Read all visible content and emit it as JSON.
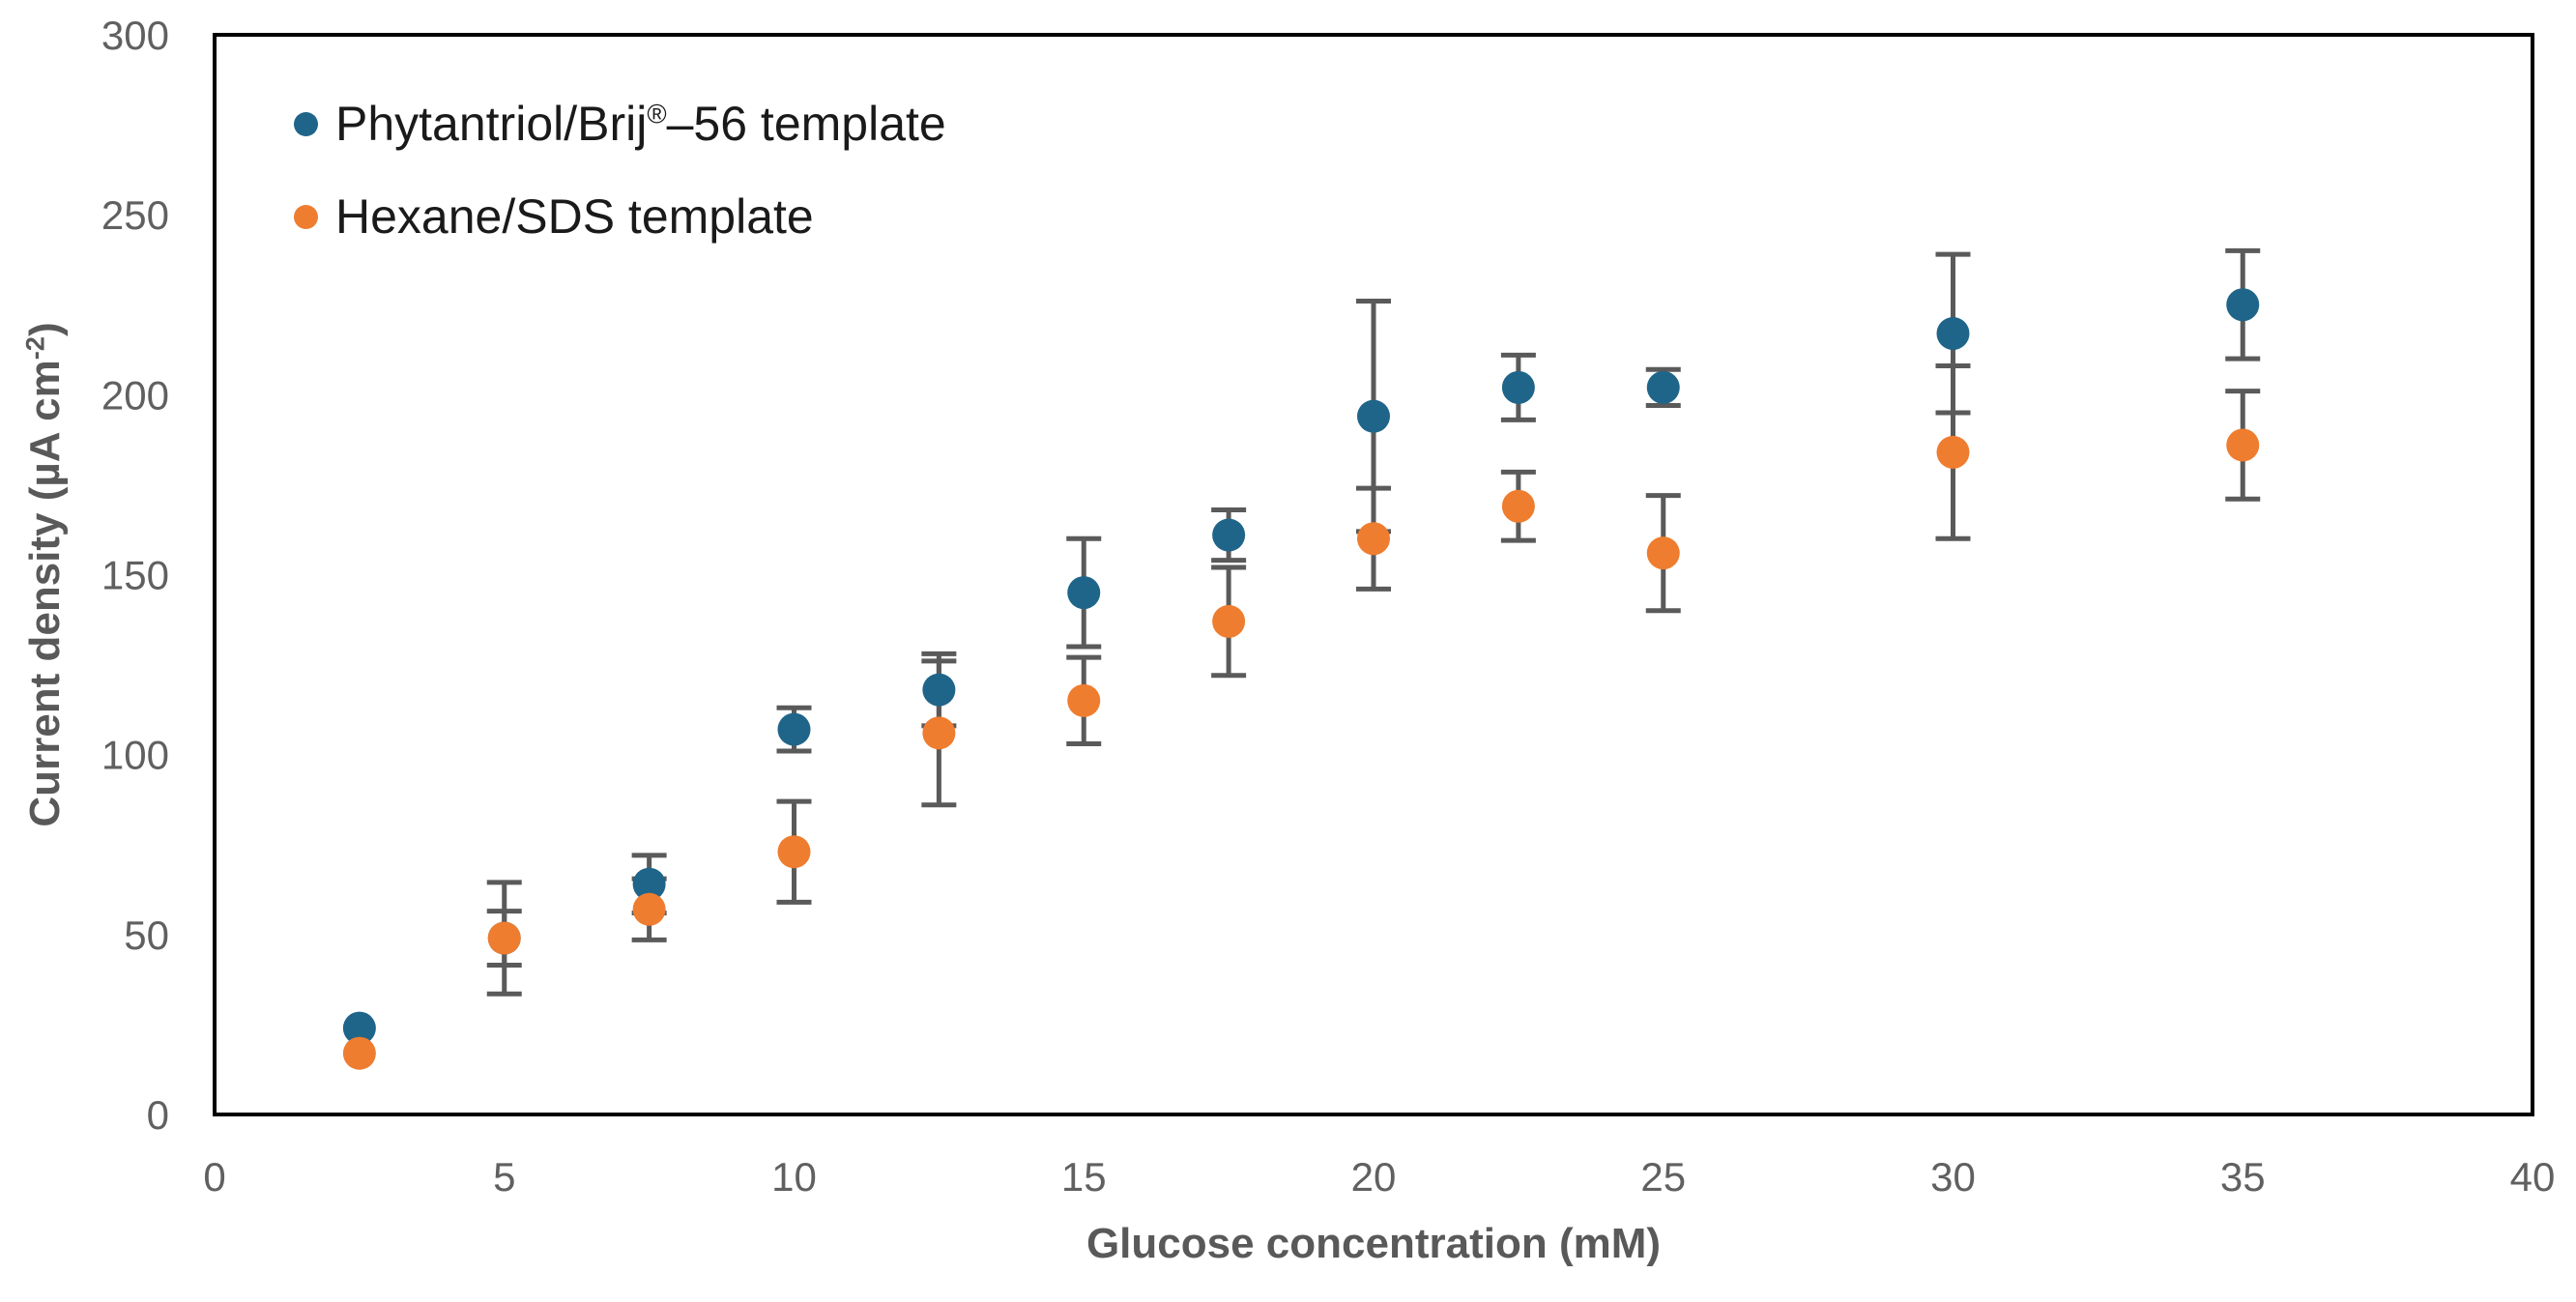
{
  "chart_data": {
    "type": "scatter",
    "title": "",
    "xlabel": "Glucose concentration (mM)",
    "ylabel": "Current density (µA cm⁻²)",
    "ylabel_parts": {
      "prefix": "Current density (µA cm",
      "sup": "-2",
      "suffix": ")"
    },
    "xlim": [
      0,
      40
    ],
    "ylim": [
      0,
      300
    ],
    "x_ticks": [
      0,
      5,
      10,
      15,
      20,
      25,
      30,
      35,
      40
    ],
    "y_ticks": [
      0,
      50,
      100,
      150,
      200,
      250,
      300
    ],
    "grid": false,
    "legend_position": "inside-top-left",
    "x": [
      2.5,
      5,
      7.5,
      10,
      12.5,
      15,
      17.5,
      20,
      22.5,
      25,
      30,
      35
    ],
    "series": [
      {
        "name": "Phytantriol/Brij®–56 template",
        "color": "#1F6589",
        "marker": "circle",
        "values": [
          24,
          49,
          64,
          107,
          118,
          145,
          161,
          194,
          202,
          202,
          217,
          225
        ],
        "errors": [
          0,
          7.5,
          8,
          6,
          10,
          15,
          7,
          32,
          9,
          5,
          22,
          15
        ]
      },
      {
        "name": "Hexane/SDS template",
        "color": "#EF7D2F",
        "marker": "circle",
        "values": [
          17,
          49,
          57,
          73,
          106,
          115,
          137,
          160,
          169,
          156,
          184,
          186
        ],
        "errors": [
          0,
          15.5,
          8.5,
          14,
          20,
          12,
          15,
          14,
          9.5,
          16,
          24,
          15
        ]
      }
    ],
    "colors": {
      "axis": "#000000",
      "error_bar": "#5A5A5A",
      "tick_label": "#606060",
      "axis_title": "#595959",
      "legend_text": "#1A1A1A"
    }
  },
  "legend": {
    "items": [
      {
        "prefix": "Phytantriol/Brij",
        "sup": "®",
        "suffix": "–56 template"
      },
      {
        "prefix": "Hexane/SDS template",
        "sup": "",
        "suffix": ""
      }
    ]
  }
}
